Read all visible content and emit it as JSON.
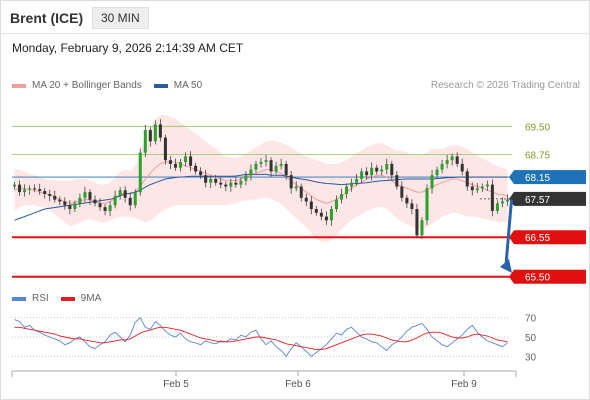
{
  "header": {
    "instrument": "Brent (ICE)",
    "timeframe": "30 MIN"
  },
  "timestamp": "Monday, February 9, 2026 2:14:39 AM CET",
  "legend": [
    {
      "name": "MA 20 + Bollinger Bands",
      "color": "#f29c9c"
    },
    {
      "name": "MA 50",
      "color": "#2d5aa0"
    }
  ],
  "credit": "Research © 2026 Trading Central",
  "rsi_legend": [
    {
      "name": "RSI",
      "color": "#5b84d6"
    },
    {
      "name": "9MA",
      "color": "#e02020"
    }
  ],
  "chart_data": [
    {
      "type": "candlestick",
      "ylim": [
        65.2,
        70.2
      ],
      "x_ticks": [
        "Feb 5",
        "Feb 6",
        "Feb 9"
      ],
      "levels": [
        {
          "label": "69.50",
          "value": 69.5,
          "kind": "resistance",
          "color": "#8fc45a"
        },
        {
          "label": "68.75",
          "value": 68.75,
          "kind": "resistance",
          "color": "#8fc45a"
        },
        {
          "label": "68.15",
          "value": 68.15,
          "kind": "current-ma",
          "color": "#1e73b8"
        },
        {
          "label": "67.57",
          "value": 67.57,
          "kind": "last-price",
          "color": "#333333"
        },
        {
          "label": "66.55",
          "value": 66.55,
          "kind": "support",
          "color": "#e01010"
        },
        {
          "label": "65.50",
          "value": 65.5,
          "kind": "support",
          "color": "#e01010"
        }
      ],
      "projection": {
        "from": 67.55,
        "to": 65.6
      },
      "close": [
        67.95,
        67.75,
        67.82,
        67.85,
        67.83,
        67.78,
        67.7,
        67.65,
        67.55,
        67.5,
        67.4,
        67.3,
        67.45,
        67.6,
        67.75,
        67.55,
        67.45,
        67.35,
        67.25,
        67.4,
        67.65,
        67.8,
        67.6,
        67.4,
        67.75,
        68.8,
        69.4,
        69.1,
        69.55,
        69.2,
        68.6,
        68.5,
        68.4,
        68.55,
        68.7,
        68.45,
        68.3,
        68.2,
        68.0,
        68.1,
        68.0,
        67.95,
        67.9,
        68.0,
        67.95,
        68.05,
        68.2,
        68.35,
        68.5,
        68.55,
        68.6,
        68.3,
        68.45,
        68.5,
        68.2,
        67.85,
        67.9,
        67.6,
        67.5,
        67.3,
        67.2,
        67.1,
        67.0,
        67.3,
        67.55,
        67.7,
        67.9,
        68.0,
        68.1,
        68.3,
        68.2,
        68.4,
        68.3,
        68.35,
        68.5,
        68.2,
        67.9,
        67.6,
        67.45,
        67.3,
        66.6,
        67.0,
        67.85,
        68.2,
        68.35,
        68.5,
        68.6,
        68.7,
        68.5,
        68.3,
        67.9,
        67.8,
        67.85,
        67.9,
        67.95,
        67.25,
        67.45,
        67.5,
        67.55
      ],
      "ma20": [
        67.8,
        67.85,
        67.85,
        67.82,
        67.8,
        67.75,
        67.72,
        67.68,
        67.62,
        67.55,
        67.5,
        67.45,
        67.48,
        67.52,
        67.55,
        67.55,
        67.5,
        67.45,
        67.45,
        67.5,
        67.6,
        67.7,
        67.72,
        67.7,
        67.75,
        67.9,
        68.1,
        68.25,
        68.4,
        68.5,
        68.55,
        68.55,
        68.55,
        68.5,
        68.45,
        68.4,
        68.35,
        68.3,
        68.25,
        68.2,
        68.15,
        68.1,
        68.05,
        68.05,
        68.05,
        68.1,
        68.15,
        68.2,
        68.25,
        68.3,
        68.35,
        68.35,
        68.3,
        68.25,
        68.15,
        68.05,
        67.95,
        67.85,
        67.75,
        67.65,
        67.55,
        67.5,
        67.45,
        67.5,
        67.55,
        67.65,
        67.75,
        67.85,
        67.95,
        68.0,
        68.1,
        68.15,
        68.2,
        68.2,
        68.15,
        68.05,
        67.95,
        67.9,
        67.85,
        67.8,
        67.75,
        67.75,
        67.8,
        67.9,
        67.95,
        68.0,
        68.05,
        68.1,
        68.1,
        68.05,
        68.0,
        67.95,
        67.9,
        67.85,
        67.8,
        67.75,
        67.7,
        67.68,
        67.65
      ],
      "ma50": [
        67.0,
        67.05,
        67.1,
        67.15,
        67.2,
        67.25,
        67.3,
        67.32,
        67.34,
        67.36,
        67.38,
        67.4,
        67.42,
        67.44,
        67.46,
        67.48,
        67.5,
        67.52,
        67.54,
        67.56,
        67.6,
        67.65,
        67.7,
        67.72,
        67.75,
        67.8,
        67.88,
        67.95,
        68.0,
        68.05,
        68.1,
        68.12,
        68.14,
        68.15,
        68.16,
        68.17,
        68.17,
        68.17,
        68.17,
        68.17,
        68.17,
        68.17,
        68.17,
        68.17,
        68.18,
        68.2,
        68.22,
        68.22,
        68.22,
        68.22,
        68.22,
        68.2,
        68.2,
        68.2,
        68.18,
        68.15,
        68.12,
        68.1,
        68.08,
        68.05,
        68.02,
        68.0,
        67.98,
        67.97,
        67.96,
        67.95,
        67.96,
        67.97,
        67.98,
        67.99,
        68.0,
        68.02,
        68.04,
        68.05,
        68.06,
        68.07,
        68.08,
        68.09,
        68.1,
        68.1,
        68.1,
        68.1,
        68.1,
        68.1,
        68.11,
        68.12,
        68.13,
        68.14,
        68.15,
        68.15,
        68.15,
        68.15,
        68.15,
        68.15,
        68.15,
        68.15,
        68.15,
        68.15,
        68.15
      ],
      "bb_width": [
        0.55,
        0.5,
        0.45,
        0.42,
        0.4,
        0.38,
        0.38,
        0.4,
        0.45,
        0.5,
        0.55,
        0.6,
        0.6,
        0.58,
        0.55,
        0.52,
        0.5,
        0.5,
        0.5,
        0.5,
        0.55,
        0.6,
        0.62,
        0.62,
        0.7,
        0.9,
        1.15,
        1.25,
        1.3,
        1.3,
        1.25,
        1.2,
        1.15,
        1.1,
        1.05,
        1.0,
        0.95,
        0.9,
        0.85,
        0.8,
        0.75,
        0.7,
        0.65,
        0.62,
        0.6,
        0.6,
        0.62,
        0.65,
        0.7,
        0.72,
        0.75,
        0.78,
        0.8,
        0.82,
        0.85,
        0.88,
        0.9,
        0.92,
        0.95,
        1.0,
        1.05,
        1.05,
        1.05,
        1.0,
        0.95,
        0.9,
        0.85,
        0.85,
        0.85,
        0.85,
        0.85,
        0.85,
        0.85,
        0.85,
        0.85,
        0.88,
        0.9,
        0.95,
        0.95,
        0.95,
        1.0,
        1.0,
        1.0,
        1.0,
        0.95,
        0.9,
        0.9,
        0.9,
        0.9,
        0.9,
        0.9,
        0.85,
        0.82,
        0.8,
        0.78,
        0.76,
        0.74,
        0.72,
        0.7
      ]
    },
    {
      "type": "line",
      "name": "RSI",
      "ylim": [
        20,
        80
      ],
      "y_ticks": [
        70,
        50,
        30
      ],
      "rsi": [
        68,
        66,
        60,
        62,
        57,
        55,
        52,
        50,
        48,
        46,
        42,
        44,
        48,
        50,
        45,
        40,
        38,
        42,
        45,
        52,
        55,
        50,
        45,
        52,
        65,
        70,
        60,
        58,
        66,
        62,
        56,
        52,
        50,
        54,
        48,
        45,
        44,
        42,
        46,
        44,
        43,
        46,
        45,
        48,
        47,
        52,
        50,
        55,
        57,
        48,
        42,
        46,
        40,
        36,
        30,
        38,
        44,
        40,
        35,
        30,
        34,
        38,
        42,
        48,
        54,
        52,
        58,
        60,
        55,
        50,
        48,
        45,
        44,
        40,
        36,
        42,
        45,
        50,
        56,
        60,
        62,
        64,
        58,
        50,
        46,
        42,
        40,
        44,
        48,
        52,
        58,
        62,
        55,
        50,
        46,
        44,
        42,
        40,
        44
      ],
      "ma9": [
        60,
        60,
        59,
        58,
        57,
        56,
        55,
        54,
        53,
        51,
        50,
        49,
        48,
        48,
        47,
        46,
        45,
        44,
        44,
        45,
        46,
        47,
        47,
        48,
        51,
        54,
        56,
        57,
        59,
        60,
        60,
        59,
        58,
        57,
        55,
        53,
        51,
        49,
        48,
        47,
        46,
        45,
        45,
        45,
        46,
        47,
        48,
        49,
        50,
        50,
        49,
        48,
        47,
        45,
        43,
        42,
        41,
        40,
        39,
        38,
        37,
        37,
        38,
        40,
        42,
        44,
        46,
        48,
        50,
        52,
        53,
        53,
        52,
        51,
        49,
        47,
        46,
        45,
        45,
        47,
        49,
        52,
        54,
        55,
        55,
        54,
        52,
        50,
        49,
        49,
        50,
        52,
        53,
        52,
        51,
        49,
        47,
        46,
        45
      ]
    }
  ]
}
